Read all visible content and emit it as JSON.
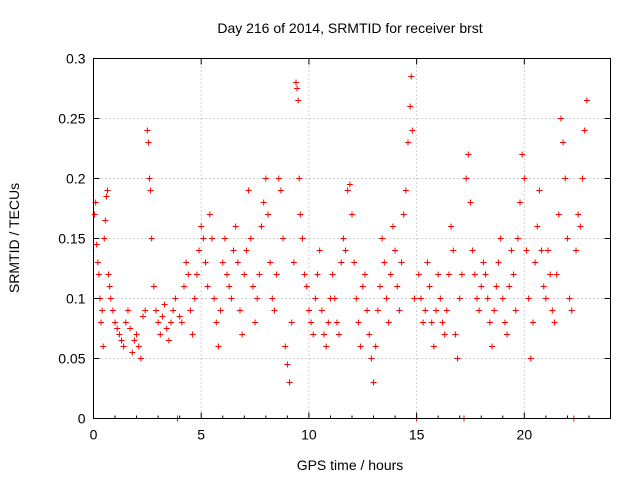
{
  "chart_data": {
    "type": "scatter",
    "title": "Day 216 of 2014, SRMTID for receiver brst",
    "xlabel": "GPS time / hours",
    "ylabel": "SRMTID / TECUs",
    "xlim": [
      0,
      24
    ],
    "ylim": [
      0,
      0.3
    ],
    "xticks": [
      0,
      5,
      10,
      15,
      20
    ],
    "xtick_labels": [
      "0",
      "5",
      "10",
      "15",
      "20"
    ],
    "yticks": [
      0,
      0.05,
      0.1,
      0.15,
      0.2,
      0.25,
      0.3
    ],
    "ytick_labels": [
      "0",
      "0.05",
      "0.1",
      "0.15",
      "0.2",
      "0.25",
      "0.3"
    ],
    "grid": true,
    "marker": "plus",
    "marker_color": "#ff0000",
    "series": [
      {
        "name": "SRMTID",
        "points": [
          [
            0.05,
            0.17
          ],
          [
            0.1,
            0.18
          ],
          [
            0.15,
            0.145
          ],
          [
            0.2,
            0.13
          ],
          [
            0.25,
            0.12
          ],
          [
            0.3,
            0.1
          ],
          [
            0.35,
            0.08
          ],
          [
            0.4,
            0.09
          ],
          [
            0.45,
            0.06
          ],
          [
            0.5,
            0.15
          ],
          [
            0.55,
            0.165
          ],
          [
            0.6,
            0.185
          ],
          [
            0.65,
            0.19
          ],
          [
            0.7,
            0.12
          ],
          [
            0.75,
            0.11
          ],
          [
            0.8,
            0.1
          ],
          [
            0.9,
            0.09
          ],
          [
            1.0,
            0.08
          ],
          [
            1.1,
            0.075
          ],
          [
            1.2,
            0.07
          ],
          [
            1.3,
            0.065
          ],
          [
            1.4,
            0.06
          ],
          [
            1.5,
            0.08
          ],
          [
            1.6,
            0.09
          ],
          [
            1.7,
            0.075
          ],
          [
            1.8,
            0.055
          ],
          [
            1.9,
            0.065
          ],
          [
            2.0,
            0.07
          ],
          [
            2.1,
            0.06
          ],
          [
            2.2,
            0.05
          ],
          [
            2.3,
            0.085
          ],
          [
            2.4,
            0.09
          ],
          [
            2.5,
            0.24
          ],
          [
            2.55,
            0.23
          ],
          [
            2.6,
            0.2
          ],
          [
            2.65,
            0.19
          ],
          [
            2.7,
            0.15
          ],
          [
            2.8,
            0.11
          ],
          [
            2.9,
            0.09
          ],
          [
            3.0,
            0.08
          ],
          [
            3.1,
            0.07
          ],
          [
            3.2,
            0.085
          ],
          [
            3.3,
            0.095
          ],
          [
            3.4,
            0.075
          ],
          [
            3.5,
            0.065
          ],
          [
            3.6,
            0.08
          ],
          [
            3.7,
            0.09
          ],
          [
            3.8,
            0.1
          ],
          [
            3.9,
            0.0
          ],
          [
            4.0,
            0.085
          ],
          [
            4.1,
            0.08
          ],
          [
            4.2,
            0.11
          ],
          [
            4.3,
            0.13
          ],
          [
            4.4,
            0.12
          ],
          [
            4.5,
            0.09
          ],
          [
            4.6,
            0.07
          ],
          [
            4.7,
            0.1
          ],
          [
            4.8,
            0.12
          ],
          [
            4.9,
            0.14
          ],
          [
            5.0,
            0.16
          ],
          [
            5.1,
            0.15
          ],
          [
            5.2,
            0.13
          ],
          [
            5.3,
            0.11
          ],
          [
            5.4,
            0.17
          ],
          [
            5.5,
            0.15
          ],
          [
            5.6,
            0.1
          ],
          [
            5.7,
            0.08
          ],
          [
            5.8,
            0.06
          ],
          [
            5.9,
            0.09
          ],
          [
            6.0,
            0.13
          ],
          [
            6.1,
            0.15
          ],
          [
            6.2,
            0.12
          ],
          [
            6.3,
            0.11
          ],
          [
            6.4,
            0.1
          ],
          [
            6.5,
            0.14
          ],
          [
            6.6,
            0.16
          ],
          [
            6.7,
            0.13
          ],
          [
            6.8,
            0.09
          ],
          [
            6.9,
            0.07
          ],
          [
            7.0,
            0.12
          ],
          [
            7.1,
            0.14
          ],
          [
            7.2,
            0.19
          ],
          [
            7.3,
            0.15
          ],
          [
            7.4,
            0.11
          ],
          [
            7.5,
            0.08
          ],
          [
            7.6,
            0.1
          ],
          [
            7.7,
            0.12
          ],
          [
            7.8,
            0.16
          ],
          [
            7.9,
            0.18
          ],
          [
            8.0,
            0.2
          ],
          [
            8.1,
            0.17
          ],
          [
            8.2,
            0.13
          ],
          [
            8.3,
            0.1
          ],
          [
            8.4,
            0.09
          ],
          [
            8.5,
            0.12
          ],
          [
            8.6,
            0.2
          ],
          [
            8.7,
            0.19
          ],
          [
            8.8,
            0.15
          ],
          [
            8.9,
            0.06
          ],
          [
            9.0,
            0.045
          ],
          [
            9.1,
            0.03
          ],
          [
            9.2,
            0.08
          ],
          [
            9.3,
            0.13
          ],
          [
            9.4,
            0.28
          ],
          [
            9.45,
            0.275
          ],
          [
            9.5,
            0.265
          ],
          [
            9.55,
            0.2
          ],
          [
            9.6,
            0.17
          ],
          [
            9.7,
            0.15
          ],
          [
            9.8,
            0.12
          ],
          [
            9.9,
            0.11
          ],
          [
            10.0,
            0.09
          ],
          [
            10.1,
            0.08
          ],
          [
            10.2,
            0.07
          ],
          [
            10.3,
            0.1
          ],
          [
            10.4,
            0.12
          ],
          [
            10.5,
            0.14
          ],
          [
            10.6,
            0.09
          ],
          [
            10.7,
            0.07
          ],
          [
            10.8,
            0.06
          ],
          [
            10.9,
            0.08
          ],
          [
            11.0,
            0.1
          ],
          [
            11.1,
            0.12
          ],
          [
            11.2,
            0.1
          ],
          [
            11.3,
            0.08
          ],
          [
            11.4,
            0.07
          ],
          [
            11.5,
            0.13
          ],
          [
            11.6,
            0.15
          ],
          [
            11.7,
            0.14
          ],
          [
            11.8,
            0.19
          ],
          [
            11.9,
            0.195
          ],
          [
            12.0,
            0.17
          ],
          [
            12.1,
            0.13
          ],
          [
            12.2,
            0.1
          ],
          [
            12.3,
            0.08
          ],
          [
            12.4,
            0.06
          ],
          [
            12.5,
            0.11
          ],
          [
            12.6,
            0.12
          ],
          [
            12.7,
            0.09
          ],
          [
            12.8,
            0.07
          ],
          [
            12.9,
            0.05
          ],
          [
            13.0,
            0.03
          ],
          [
            13.1,
            0.06
          ],
          [
            13.2,
            0.09
          ],
          [
            13.3,
            0.11
          ],
          [
            13.4,
            0.15
          ],
          [
            13.5,
            0.13
          ],
          [
            13.6,
            0.1
          ],
          [
            13.7,
            0.08
          ],
          [
            13.8,
            0.12
          ],
          [
            13.9,
            0.16
          ],
          [
            14.0,
            0.14
          ],
          [
            14.1,
            0.11
          ],
          [
            14.2,
            0.09
          ],
          [
            14.3,
            0.13
          ],
          [
            14.4,
            0.17
          ],
          [
            14.5,
            0.19
          ],
          [
            14.6,
            0.23
          ],
          [
            14.7,
            0.26
          ],
          [
            14.75,
            0.285
          ],
          [
            14.8,
            0.24
          ],
          [
            14.9,
            0.1
          ],
          [
            15.0,
            0.0
          ],
          [
            15.1,
            0.12
          ],
          [
            15.2,
            0.1
          ],
          [
            15.3,
            0.08
          ],
          [
            15.4,
            0.09
          ],
          [
            15.5,
            0.13
          ],
          [
            15.6,
            0.11
          ],
          [
            15.7,
            0.08
          ],
          [
            15.8,
            0.06
          ],
          [
            15.9,
            0.09
          ],
          [
            16.0,
            0.12
          ],
          [
            16.1,
            0.1
          ],
          [
            16.2,
            0.08
          ],
          [
            16.3,
            0.07
          ],
          [
            16.4,
            0.09
          ],
          [
            16.5,
            0.12
          ],
          [
            16.6,
            0.16
          ],
          [
            16.7,
            0.14
          ],
          [
            16.8,
            0.07
          ],
          [
            16.9,
            0.05
          ],
          [
            17.0,
            0.1
          ],
          [
            17.1,
            0.12
          ],
          [
            17.2,
            0.0
          ],
          [
            17.3,
            0.2
          ],
          [
            17.4,
            0.22
          ],
          [
            17.5,
            0.18
          ],
          [
            17.6,
            0.14
          ],
          [
            17.7,
            0.12
          ],
          [
            17.8,
            0.1
          ],
          [
            17.9,
            0.09
          ],
          [
            18.0,
            0.11
          ],
          [
            18.1,
            0.13
          ],
          [
            18.2,
            0.12
          ],
          [
            18.3,
            0.1
          ],
          [
            18.4,
            0.08
          ],
          [
            18.5,
            0.06
          ],
          [
            18.6,
            0.09
          ],
          [
            18.7,
            0.11
          ],
          [
            18.8,
            0.13
          ],
          [
            18.9,
            0.15
          ],
          [
            19.0,
            0.1
          ],
          [
            19.1,
            0.08
          ],
          [
            19.2,
            0.07
          ],
          [
            19.3,
            0.11
          ],
          [
            19.4,
            0.14
          ],
          [
            19.5,
            0.12
          ],
          [
            19.6,
            0.09
          ],
          [
            19.7,
            0.15
          ],
          [
            19.8,
            0.18
          ],
          [
            19.9,
            0.22
          ],
          [
            20.0,
            0.2
          ],
          [
            20.1,
            0.14
          ],
          [
            20.2,
            0.1
          ],
          [
            20.3,
            0.05
          ],
          [
            20.4,
            0.08
          ],
          [
            20.5,
            0.13
          ],
          [
            20.6,
            0.16
          ],
          [
            20.7,
            0.19
          ],
          [
            20.8,
            0.14
          ],
          [
            20.9,
            0.11
          ],
          [
            21.0,
            0.1
          ],
          [
            21.1,
            0.14
          ],
          [
            21.2,
            0.12
          ],
          [
            21.3,
            0.09
          ],
          [
            21.4,
            0.08
          ],
          [
            21.5,
            0.12
          ],
          [
            21.6,
            0.17
          ],
          [
            21.7,
            0.25
          ],
          [
            21.8,
            0.23
          ],
          [
            21.9,
            0.2
          ],
          [
            22.0,
            0.15
          ],
          [
            22.1,
            0.1
          ],
          [
            22.2,
            0.09
          ],
          [
            22.3,
            0.0
          ],
          [
            22.4,
            0.14
          ],
          [
            22.5,
            0.17
          ],
          [
            22.6,
            0.16
          ],
          [
            22.7,
            0.2
          ],
          [
            22.8,
            0.24
          ],
          [
            22.9,
            0.265
          ]
        ]
      }
    ]
  }
}
